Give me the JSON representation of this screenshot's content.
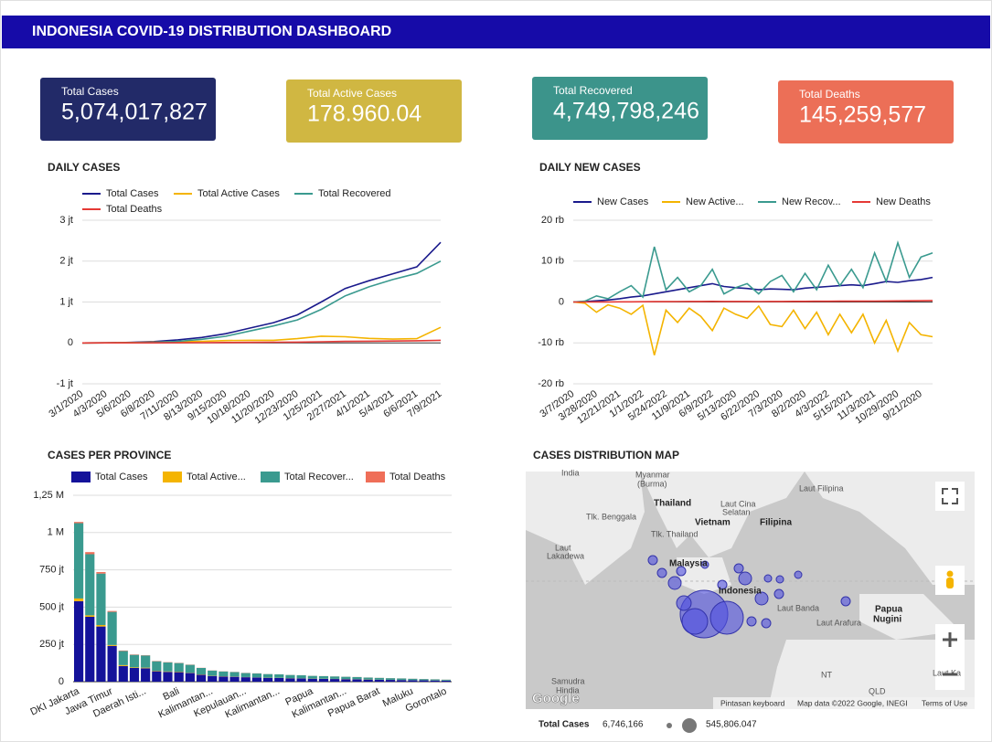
{
  "header": {
    "title": "INDONESIA COVID-19 DISTRIBUTION DASHBOARD"
  },
  "kpis": [
    {
      "label": "Total Cases",
      "value": "5,074,017,827",
      "color": "#222a68"
    },
    {
      "label": "Total Active Cases",
      "value": "178.960.04",
      "color": "#d0b742"
    },
    {
      "label": "Total Recovered",
      "value": "4,749,798,246",
      "color": "#3c948b"
    },
    {
      "label": "Total Deaths",
      "value": "145,259,577",
      "color": "#ec6f57"
    }
  ],
  "chart_data": [
    {
      "type": "line",
      "title": "DAILY CASES",
      "grid": true,
      "categories": [
        "3/1/2020",
        "4/3/2020",
        "5/6/2020",
        "6/8/2020",
        "7/11/2020",
        "8/13/2020",
        "9/15/2020",
        "10/18/2020",
        "11/20/2020",
        "12/23/2020",
        "1/25/2021",
        "2/27/2021",
        "4/1/2021",
        "5/4/2021",
        "6/6/2021",
        "7/9/2021"
      ],
      "series": [
        {
          "name": "Total Cases",
          "color": "#1a1a8c",
          "values": [
            0,
            2000,
            12000,
            32000,
            75000,
            132000,
            225000,
            362000,
            494000,
            686000,
            1000000,
            1330000,
            1520000,
            1690000,
            1860000,
            2460000
          ]
        },
        {
          "name": "Total Active Cases",
          "color": "#f4b400",
          "values": [
            0,
            1500,
            8000,
            19000,
            33000,
            38000,
            56000,
            63000,
            63000,
            104000,
            165000,
            150000,
            110000,
            93000,
            105000,
            380000
          ]
        },
        {
          "name": "Total Recovered",
          "color": "#3a9a8f",
          "values": [
            0,
            400,
            2800,
            12000,
            38000,
            88000,
            162000,
            290000,
            415000,
            563000,
            820000,
            1150000,
            1370000,
            1550000,
            1700000,
            2000000
          ]
        },
        {
          "name": "Total Deaths",
          "color": "#e53935",
          "values": [
            0,
            190,
            1000,
            1900,
            3600,
            6000,
            9000,
            12500,
            15800,
            20000,
            28000,
            36000,
            41800,
            46300,
            51600,
            64000
          ]
        }
      ],
      "ylim": [
        -1000000,
        3000000
      ],
      "yticks": [
        {
          "value": -1000000,
          "label": "-1 jt"
        },
        0,
        {
          "value": 1000000,
          "label": "1 jt"
        },
        {
          "value": 2000000,
          "label": "2 jt"
        },
        {
          "value": 3000000,
          "label": "3 jt"
        }
      ]
    },
    {
      "type": "line",
      "title": "DAILY NEW CASES",
      "grid": true,
      "categories": [
        "3/7/2020",
        null,
        "3/28/2020",
        null,
        "12/21/2021",
        null,
        "1/1/2022",
        null,
        "5/24/2022",
        null,
        "11/9/2021",
        null,
        "6/9/2022",
        null,
        "5/13/2020",
        null,
        "6/22/2020",
        null,
        "7/3/2020",
        null,
        "8/2/2020",
        null,
        "4/3/2022",
        null,
        "5/15/2021",
        null,
        "11/3/2021",
        null,
        "10/29/2020",
        null,
        "9/21/2020",
        null
      ],
      "series": [
        {
          "name": "New Cases",
          "color": "#1a1a8c",
          "values": [
            0,
            100,
            300,
            500,
            800,
            1200,
            1500,
            2000,
            2500,
            3000,
            3500,
            4000,
            4500,
            3800,
            3500,
            3300,
            3000,
            3200,
            3100,
            3000,
            3400,
            3600,
            3800,
            4000,
            4200,
            4000,
            4500,
            5000,
            4800,
            5200,
            5500,
            6000
          ]
        },
        {
          "name": "New Active...",
          "color": "#f4b400",
          "values": [
            0,
            -300,
            -2500,
            -700,
            -1500,
            -3000,
            -800,
            -13000,
            -2000,
            -5000,
            -1500,
            -3500,
            -7000,
            -1500,
            -3000,
            -4000,
            -1000,
            -5500,
            -6000,
            -2000,
            -6500,
            -2500,
            -8000,
            -3000,
            -7500,
            -3000,
            -10000,
            -4500,
            -12000,
            -5000,
            -8000,
            -8500
          ]
        },
        {
          "name": "New Recov...",
          "color": "#3a9a8f",
          "values": [
            0,
            200,
            1500,
            800,
            2500,
            4000,
            1200,
            13500,
            3000,
            6000,
            2500,
            4000,
            8000,
            2000,
            3500,
            4500,
            2000,
            5000,
            6500,
            2500,
            7000,
            3000,
            9000,
            4000,
            8000,
            3500,
            12000,
            5000,
            14500,
            6000,
            11000,
            12000
          ]
        },
        {
          "name": "New Deaths",
          "color": "#e53935",
          "values": [
            0,
            5,
            20,
            30,
            40,
            50,
            60,
            80,
            100,
            120,
            130,
            140,
            150,
            140,
            130,
            130,
            120,
            130,
            140,
            150,
            160,
            170,
            180,
            190,
            200,
            210,
            230,
            250,
            270,
            290,
            310,
            350
          ]
        }
      ],
      "ylim": [
        -20000,
        20000
      ],
      "yticks": [
        {
          "value": -20000,
          "label": "-20 rb"
        },
        {
          "value": -10000,
          "label": "-10 rb"
        },
        0,
        {
          "value": 10000,
          "label": "10 rb"
        },
        {
          "value": 20000,
          "label": "20 rb"
        }
      ]
    },
    {
      "type": "bar",
      "title": "CASES PER PROVINCE",
      "stacked": true,
      "grid": true,
      "categories": [
        "DKI Jakarta",
        null,
        null,
        "Jawa Timur",
        null,
        null,
        "Daerah Isti...",
        null,
        null,
        "Bali",
        null,
        null,
        "Kalimantan...",
        null,
        null,
        "Kepulauan...",
        null,
        null,
        "Kalimantan...",
        null,
        null,
        "Papua",
        null,
        null,
        "Kalimantan...",
        null,
        null,
        "Papua Barat",
        null,
        null,
        "Maluku",
        null,
        null,
        "Gorontalo"
      ],
      "series": [
        {
          "name": "Total Cases",
          "color": "#14129a",
          "values": [
            540000000,
            435000000,
            370000000,
            240000000,
            105000000,
            92000000,
            90000000,
            70000000,
            66000000,
            64000000,
            58000000,
            47000000,
            38000000,
            35000000,
            33000000,
            30000000,
            28000000,
            26000000,
            25000000,
            23000000,
            22000000,
            20000000,
            19000000,
            18000000,
            17000000,
            16000000,
            14000000,
            13000000,
            12000000,
            11000000,
            10000000,
            9000000,
            8000000,
            7000000
          ]
        },
        {
          "name": "Total Active...",
          "color": "#f4b400",
          "values": [
            18000000,
            10000000,
            10000000,
            6000000,
            6000000,
            4000000,
            4000000,
            3000000,
            3000000,
            3000000,
            2000000,
            2000000,
            1500000,
            1500000,
            1500000,
            1000000,
            1000000,
            1000000,
            1000000,
            1000000,
            1000000,
            1000000,
            1000000,
            1000000,
            1000000,
            1000000,
            1000000,
            500000,
            500000,
            500000,
            500000,
            500000,
            500000,
            500000
          ]
        },
        {
          "name": "Total Recover...",
          "color": "#3a9a8f",
          "values": [
            505000000,
            410000000,
            345000000,
            222000000,
            95000000,
            84000000,
            82000000,
            64000000,
            60000000,
            58000000,
            53000000,
            43000000,
            35000000,
            32000000,
            30000000,
            27000000,
            26000000,
            24000000,
            23000000,
            21000000,
            20000000,
            18000000,
            17000000,
            16000000,
            15000000,
            14000000,
            12500000,
            12000000,
            11000000,
            10000000,
            9000000,
            8000000,
            7000000,
            6000000
          ]
        },
        {
          "name": "Total Deaths",
          "color": "#ef6e58",
          "values": [
            8000000,
            14000000,
            10000000,
            6000000,
            3000000,
            2500000,
            2000000,
            2000000,
            2000000,
            1500000,
            1500000,
            1000000,
            1000000,
            1000000,
            1000000,
            1000000,
            1000000,
            500000,
            500000,
            500000,
            500000,
            500000,
            500000,
            500000,
            500000,
            500000,
            500000,
            500000,
            500000,
            500000,
            500000,
            500000,
            500000,
            500000
          ]
        }
      ],
      "ylim": [
        0,
        1250000000
      ],
      "yticks": [
        0,
        {
          "value": 250000000,
          "label": "250 jt"
        },
        {
          "value": 500000000,
          "label": "500 jt"
        },
        {
          "value": 750000000,
          "label": "750 jt"
        },
        {
          "value": 1000000000,
          "label": "1 M"
        },
        {
          "value": 1250000000,
          "label": "1,25 M"
        }
      ]
    }
  ],
  "map": {
    "title": "CASES DISTRIBUTION MAP",
    "labels": [
      "India",
      "Myanmar",
      "(Burma)",
      "Thailand",
      "Laut Cina",
      "Selatan",
      "Laut Filipina",
      "Tlk. Benggala",
      "Vietnam",
      "Filipina",
      "Tlk. Thailand",
      "Laut",
      "Lakadewa",
      "Malaysia",
      "Indonesia",
      "Laut Banda",
      "Papua",
      "Nugini",
      "Laut Arafura",
      "Samudra",
      "Hindia",
      "NT",
      "QLD",
      "Laut Ka"
    ],
    "brand": "Google",
    "attribution": [
      "Pintasan keyboard",
      "Map data ©2022 Google, INEGI",
      "Terms of Use"
    ],
    "legend": {
      "title": "Total Cases",
      "min": "6,746,166",
      "max": "545,806.047"
    }
  }
}
